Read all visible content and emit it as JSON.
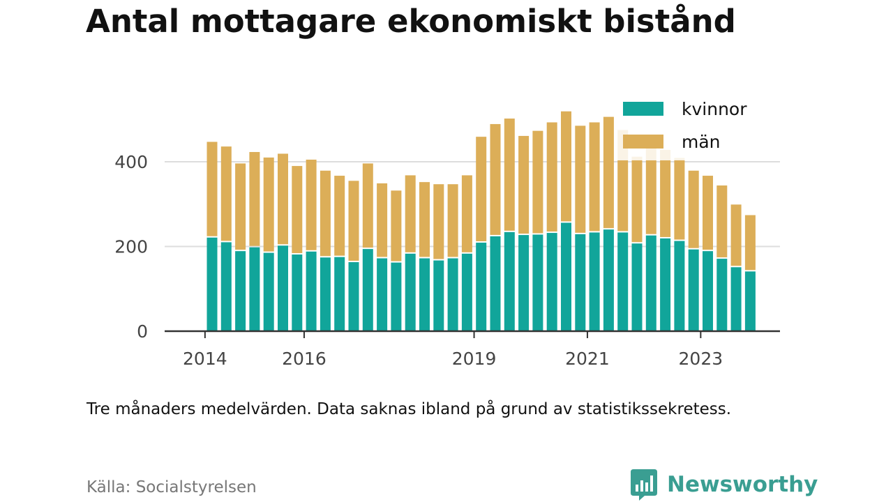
{
  "title": "Antal mottagare ekonomiskt bistånd",
  "note": "Tre månaders medelvärden. Data saknas ibland på grund av statistikssekretess.",
  "source": "Källa: Socialstyrelsen",
  "brand": {
    "name": "Newsworthy",
    "icon": "bar-chart-logo-icon"
  },
  "colors": {
    "kvinnor": "#11a59a",
    "man": "#dcae58",
    "grid": "#dddddd",
    "axis": "#333333"
  },
  "chart_data": {
    "type": "bar",
    "stacked": true,
    "title": "Antal mottagare ekonomiskt bistånd",
    "xlabel": "",
    "ylabel": "",
    "ylim": [
      0,
      560
    ],
    "yticks": [
      0,
      200,
      400
    ],
    "xticks": [
      {
        "label": "2014",
        "index": -0.5
      },
      {
        "label": "2016",
        "index": 6.5
      },
      {
        "label": "2019",
        "index": 18.5
      },
      {
        "label": "2021",
        "index": 26.5
      },
      {
        "label": "2023",
        "index": 34.5
      }
    ],
    "legend": {
      "position": "top-right",
      "entries": [
        "kvinnor",
        "män"
      ]
    },
    "categories": [
      "2014 Q3",
      "2014 Q4",
      "2015 Q1",
      "2015 Q2",
      "2015 Q3",
      "2015 Q4",
      "2016 Q1",
      "2016 Q2",
      "2016 Q3",
      "2016 Q4",
      "2017 Q1",
      "2017 Q2",
      "2017 Q3",
      "2017 Q4",
      "2018 Q1",
      "2018 Q2",
      "2018 Q3",
      "2018 Q4",
      "2019 Q1",
      "2019 Q2",
      "2019 Q3",
      "2019 Q4",
      "2020 Q1",
      "2020 Q2",
      "2020 Q3",
      "2020 Q4",
      "2021 Q1",
      "2021 Q2",
      "2021 Q3",
      "2021 Q4",
      "2022 Q1",
      "2022 Q2",
      "2022 Q3",
      "2022 Q4",
      "2023 Q1",
      "2023 Q2",
      "2023 Q3",
      "2023 Q4",
      "2024 Q1"
    ],
    "series": [
      {
        "name": "kvinnor",
        "values": [
          221,
          210,
          189,
          198,
          185,
          202,
          181,
          188,
          174,
          175,
          163,
          194,
          172,
          162,
          183,
          172,
          167,
          172,
          183,
          209,
          224,
          234,
          227,
          228,
          232,
          256,
          229,
          233,
          240,
          233,
          207,
          226,
          219,
          213,
          193,
          189,
          171,
          151,
          141
        ]
      },
      {
        "name": "män",
        "values": [
          226,
          226,
          207,
          225,
          225,
          217,
          209,
          217,
          205,
          192,
          192,
          202,
          177,
          170,
          185,
          180,
          180,
          175,
          185,
          250,
          265,
          268,
          234,
          245,
          261,
          263,
          256,
          260,
          266,
          242,
          205,
          230,
          209,
          196,
          186,
          178,
          173,
          148,
          133
        ]
      }
    ]
  }
}
